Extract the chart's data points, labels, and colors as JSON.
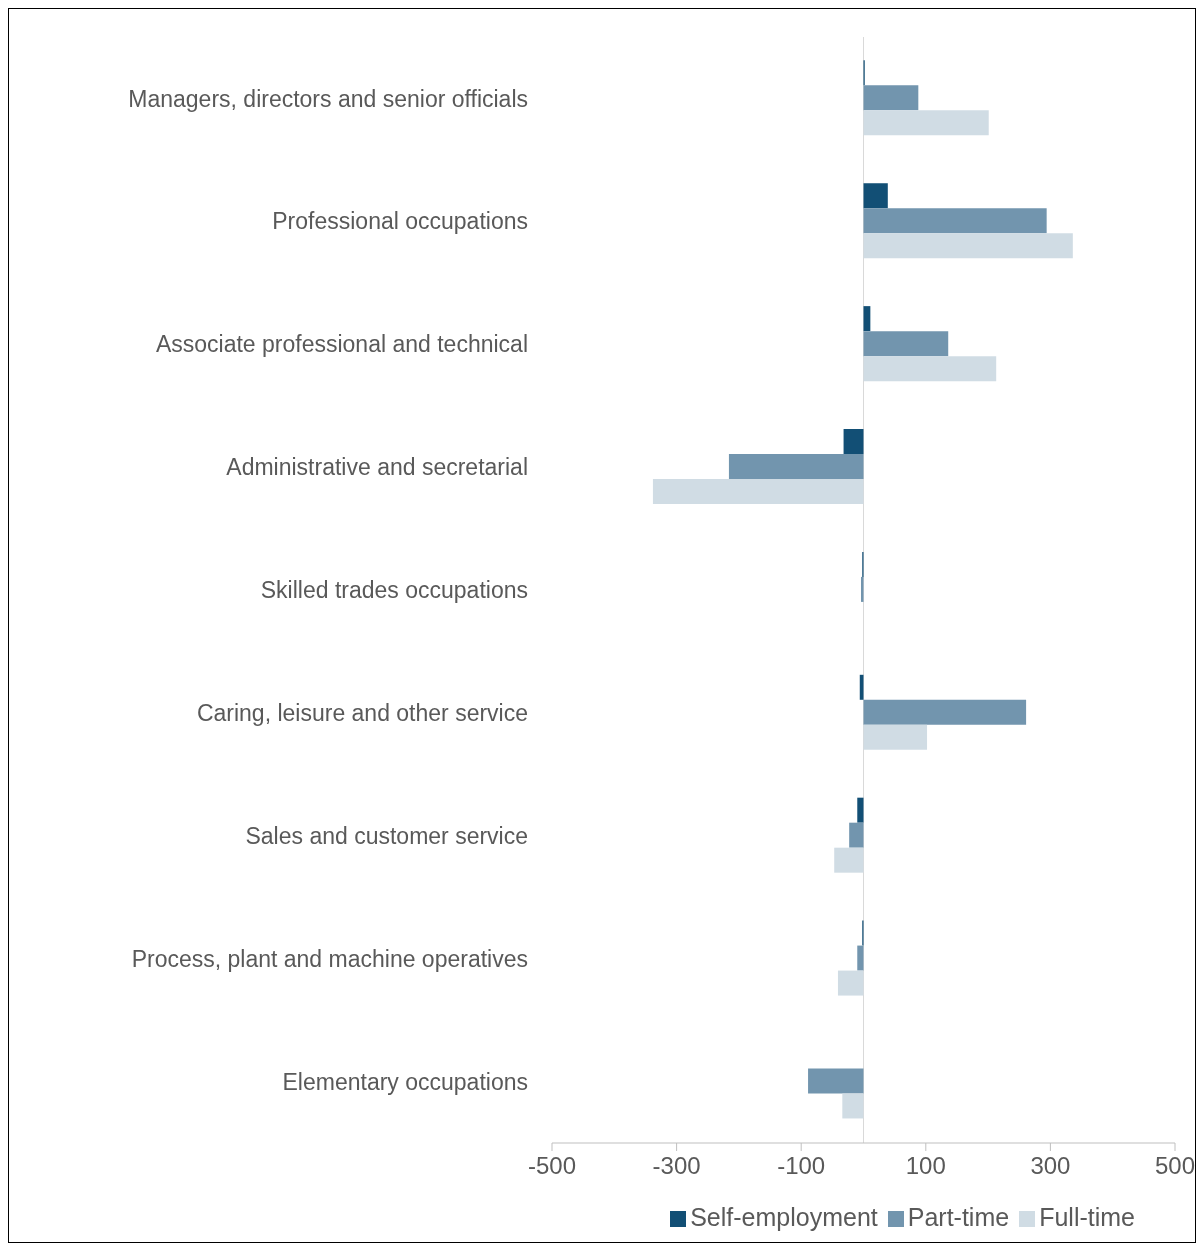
{
  "chart_data": {
    "type": "bar",
    "orientation": "horizontal",
    "categories": [
      "Managers, directors and senior officials",
      "Professional occupations",
      "Associate professional and technical",
      "Administrative and secretarial",
      "Skilled trades occupations",
      "Caring, leisure and other service",
      "Sales and customer service",
      "Process, plant and machine operatives",
      "Elementary occupations"
    ],
    "series": [
      {
        "name": "Self-employment",
        "color": "#124f75",
        "values": [
          2,
          39,
          11,
          -32,
          -2,
          -6,
          -10,
          -2,
          0
        ]
      },
      {
        "name": "Part-time",
        "color": "#7295ae",
        "values": [
          88,
          294,
          136,
          -216,
          -4,
          261,
          -23,
          -10,
          -89
        ]
      },
      {
        "name": "Full-time",
        "color": "#d0dce4",
        "values": [
          201,
          336,
          213,
          -338,
          0,
          102,
          -47,
          -41,
          -34
        ]
      }
    ],
    "xlim": [
      -500,
      500
    ],
    "xticks": [
      -500,
      -300,
      -100,
      100,
      300,
      500
    ],
    "legend": "bottom"
  }
}
